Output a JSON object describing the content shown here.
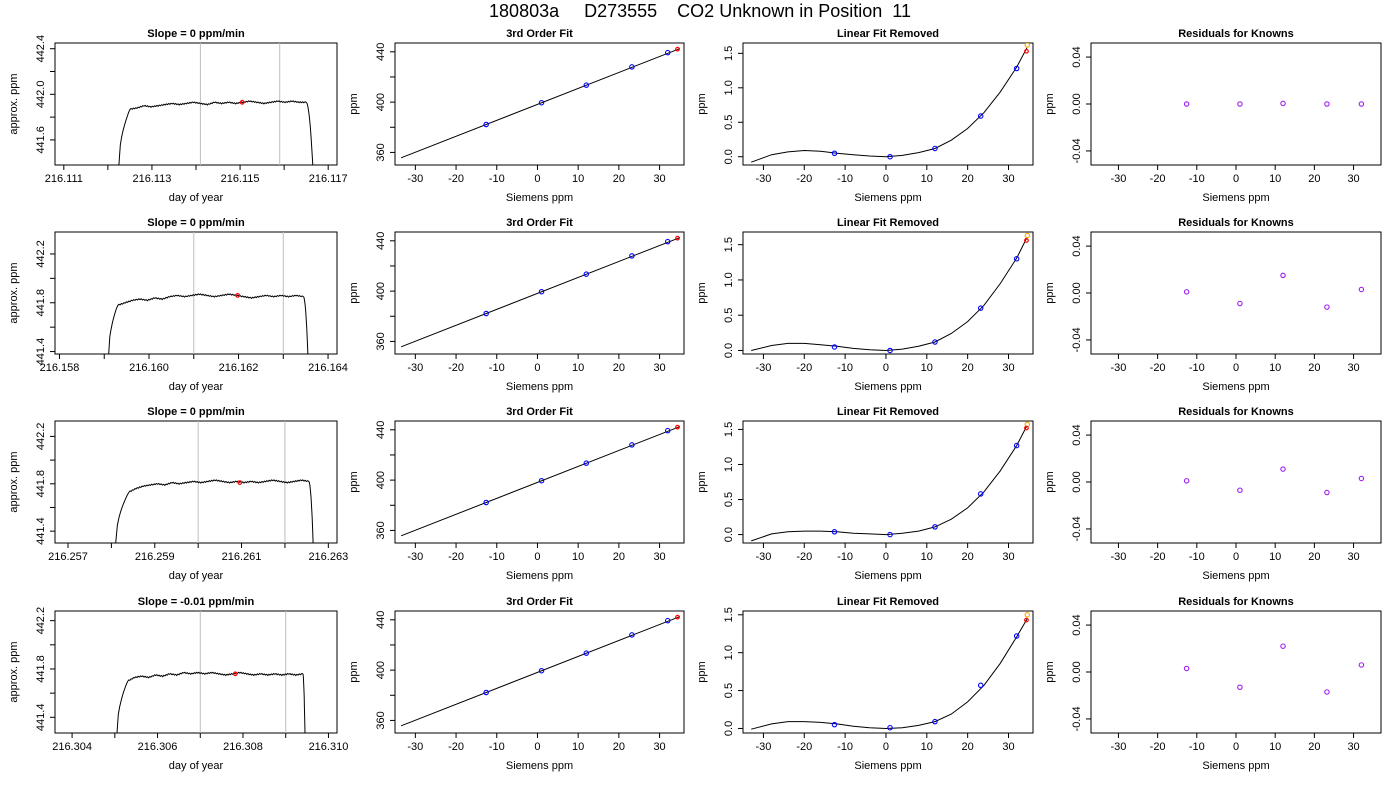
{
  "main_title": "180803a     D273555    CO2 Unknown in Position  11",
  "colors": {
    "trace": "#000000",
    "window_line": "#bebebe",
    "unknown_point": "#ff0000",
    "known_point": "#0000ff",
    "residual_point": "#a020f0",
    "extrapolated_point": "#ffa500",
    "axis": "#000000"
  },
  "chart_data": [
    {
      "type": "line",
      "row": 1,
      "col": 1,
      "title": "Slope =  0  ppm/min",
      "xlabel": "day of year",
      "ylabel": "approx. ppm",
      "xlim": [
        216.1108,
        216.1172
      ],
      "ylim": [
        441.38,
        442.45
      ],
      "xticks": [
        "216.111",
        "216.113",
        "216.115",
        "216.117"
      ],
      "xminorticks": [
        216.112,
        216.114,
        216.116
      ],
      "yticks": [
        "441.6",
        "442.0",
        "442.4"
      ],
      "yminorticks": [
        441.8,
        442.2
      ],
      "trace": {
        "t_start": 216.11225,
        "t_rise": 216.1125,
        "t_end": 216.1165,
        "t_drop": 216.11665,
        "start_value": 441.38,
        "plateau": [
          441.87,
          441.88,
          441.9,
          441.89,
          441.9,
          441.91,
          441.92,
          441.91,
          441.92,
          441.93,
          441.92,
          441.91,
          441.93,
          441.92,
          441.93,
          441.92,
          441.93,
          441.94,
          441.93,
          441.92,
          441.93,
          441.94,
          441.93,
          441.94,
          441.93,
          441.93
        ],
        "end_value": 441.38
      },
      "window": [
        216.1141,
        216.1159
      ],
      "mean_point": {
        "x": 216.11505,
        "y": 441.93
      }
    },
    {
      "type": "line",
      "row": 1,
      "col": 2,
      "title": "3rd Order Fit",
      "xlabel": "Siemens ppm",
      "ylabel": "ppm",
      "xlim": [
        -35,
        36
      ],
      "ylim": [
        350,
        447
      ],
      "xticks": [
        "-30",
        "-20",
        "-10",
        "0",
        "10",
        "20",
        "30"
      ],
      "yticks": [
        "360",
        "400",
        "440"
      ],
      "yminorticks": [
        380,
        420
      ],
      "fit_line": {
        "x": [
          -33.5,
          35
        ],
        "y": [
          355.7,
          442.6
        ]
      },
      "knowns": [
        {
          "x": -12.6,
          "y": 382.2
        },
        {
          "x": 1.0,
          "y": 399.5
        },
        {
          "x": 12.0,
          "y": 413.5
        },
        {
          "x": 23.2,
          "y": 428.0
        },
        {
          "x": 32.0,
          "y": 439.3
        }
      ],
      "unknown": {
        "x": 34.4,
        "y": 442.1
      }
    },
    {
      "type": "scatter",
      "row": 1,
      "col": 3,
      "title": "Linear Fit Removed",
      "xlabel": "Siemens ppm",
      "ylabel": "ppm",
      "xlim": [
        -35,
        36
      ],
      "ylim": [
        -0.12,
        1.65
      ],
      "xticks": [
        "-30",
        "-20",
        "-10",
        "0",
        "10",
        "20",
        "30"
      ],
      "yticks": [
        "0.0",
        "0.5",
        "1.0",
        "1.5"
      ],
      "curve": {
        "x": [
          -33,
          -28,
          -24,
          -20,
          -16,
          -12,
          -8,
          -4,
          0,
          4,
          8,
          12,
          16,
          20,
          24,
          28,
          32,
          34.5
        ],
        "y": [
          -0.08,
          0.03,
          0.07,
          0.09,
          0.08,
          0.05,
          0.03,
          0.01,
          0.0,
          0.02,
          0.06,
          0.12,
          0.24,
          0.41,
          0.64,
          0.94,
          1.3,
          1.58
        ]
      },
      "knowns": [
        {
          "x": -12.6,
          "y": 0.05
        },
        {
          "x": 1.0,
          "y": 0.0
        },
        {
          "x": 12.0,
          "y": 0.12
        },
        {
          "x": 23.2,
          "y": 0.59
        },
        {
          "x": 32.0,
          "y": 1.28
        }
      ],
      "unknown": {
        "x": 34.4,
        "y": 1.53
      },
      "extrapolated": {
        "x": 34.6,
        "y": 1.62
      }
    },
    {
      "type": "scatter",
      "row": 1,
      "col": 4,
      "title": "Residuals for Knowns",
      "xlabel": "Siemens ppm",
      "ylabel": "ppm",
      "xlim": [
        -37,
        37
      ],
      "ylim": [
        -0.052,
        0.052
      ],
      "xticks": [
        "-30",
        "-20",
        "-10",
        "0",
        "10",
        "20",
        "30"
      ],
      "yticks": [
        "-0.04",
        "0.00",
        "0.04"
      ],
      "points": [
        {
          "x": -12.6,
          "y": 0.0
        },
        {
          "x": 1.0,
          "y": 0.0
        },
        {
          "x": 12.0,
          "y": 0.0005
        },
        {
          "x": 23.2,
          "y": 0.0
        },
        {
          "x": 32.0,
          "y": 0.0
        }
      ]
    },
    {
      "type": "line",
      "row": 2,
      "col": 1,
      "title": "Slope =  0  ppm/min",
      "xlabel": "day of year",
      "ylabel": "approx. ppm",
      "xlim": [
        216.1579,
        216.1642
      ],
      "ylim": [
        441.38,
        442.38
      ],
      "xticks": [
        "216.158",
        "216.160",
        "216.162",
        "216.164"
      ],
      "xminorticks": [
        216.159,
        216.161,
        216.163
      ],
      "yticks": [
        "441.4",
        "441.8",
        "442.2"
      ],
      "yminorticks": [
        441.6,
        442.0
      ],
      "trace": {
        "t_start": 216.1591,
        "t_rise": 216.1593,
        "t_end": 216.16345,
        "t_drop": 216.16355,
        "start_value": 441.38,
        "plateau": [
          441.78,
          441.8,
          441.82,
          441.83,
          441.82,
          441.84,
          441.83,
          441.85,
          441.86,
          441.85,
          441.86,
          441.87,
          441.86,
          441.85,
          441.86,
          441.87,
          441.86,
          441.85,
          441.84,
          441.85,
          441.86,
          441.85,
          441.86,
          441.85,
          441.86,
          441.85
        ],
        "end_value": 441.38
      },
      "window": [
        216.161,
        216.163
      ],
      "mean_point": {
        "x": 216.16198,
        "y": 441.86
      }
    },
    {
      "type": "line",
      "row": 2,
      "col": 2,
      "title": "3rd Order Fit",
      "xlabel": "Siemens ppm",
      "ylabel": "ppm",
      "xlim": [
        -35,
        36
      ],
      "ylim": [
        350,
        447
      ],
      "xticks": [
        "-30",
        "-20",
        "-10",
        "0",
        "10",
        "20",
        "30"
      ],
      "yticks": [
        "360",
        "400",
        "440"
      ],
      "yminorticks": [
        380,
        420
      ],
      "fit_line": {
        "x": [
          -33.5,
          35
        ],
        "y": [
          355.7,
          442.6
        ]
      },
      "knowns": [
        {
          "x": -12.6,
          "y": 382.2
        },
        {
          "x": 1.0,
          "y": 399.5
        },
        {
          "x": 12.0,
          "y": 413.5
        },
        {
          "x": 23.2,
          "y": 428.0
        },
        {
          "x": 32.0,
          "y": 439.3
        }
      ],
      "unknown": {
        "x": 34.4,
        "y": 442.1
      }
    },
    {
      "type": "scatter",
      "row": 2,
      "col": 3,
      "title": "Linear Fit Removed",
      "xlabel": "Siemens ppm",
      "ylabel": "ppm",
      "xlim": [
        -35,
        36
      ],
      "ylim": [
        -0.05,
        1.68
      ],
      "xticks": [
        "-30",
        "-20",
        "-10",
        "0",
        "10",
        "20",
        "30"
      ],
      "yticks": [
        "0.0",
        "0.5",
        "1.0",
        "1.5"
      ],
      "curve": {
        "x": [
          -33,
          -28,
          -24,
          -20,
          -16,
          -12,
          -8,
          -4,
          0,
          4,
          8,
          12,
          16,
          20,
          24,
          28,
          32,
          34.5
        ],
        "y": [
          0.0,
          0.07,
          0.1,
          0.1,
          0.08,
          0.06,
          0.03,
          0.01,
          0.0,
          0.02,
          0.06,
          0.12,
          0.24,
          0.41,
          0.64,
          0.95,
          1.31,
          1.6
        ]
      },
      "knowns": [
        {
          "x": -12.6,
          "y": 0.05
        },
        {
          "x": 1.0,
          "y": 0.0
        },
        {
          "x": 12.0,
          "y": 0.12
        },
        {
          "x": 23.2,
          "y": 0.6
        },
        {
          "x": 32.0,
          "y": 1.3
        }
      ],
      "unknown": {
        "x": 34.4,
        "y": 1.56
      },
      "extrapolated": {
        "x": 34.6,
        "y": 1.63
      }
    },
    {
      "type": "scatter",
      "row": 2,
      "col": 4,
      "title": "Residuals for Knowns",
      "xlabel": "Siemens ppm",
      "ylabel": "ppm",
      "xlim": [
        -37,
        37
      ],
      "ylim": [
        -0.052,
        0.052
      ],
      "xticks": [
        "-30",
        "-20",
        "-10",
        "0",
        "10",
        "20",
        "30"
      ],
      "yticks": [
        "-0.04",
        "0.00",
        "0.04"
      ],
      "points": [
        {
          "x": -12.6,
          "y": 0.001
        },
        {
          "x": 1.0,
          "y": -0.009
        },
        {
          "x": 12.0,
          "y": 0.015
        },
        {
          "x": 23.2,
          "y": -0.012
        },
        {
          "x": 32.0,
          "y": 0.003
        }
      ]
    },
    {
      "type": "line",
      "row": 3,
      "col": 1,
      "title": "Slope =  0  ppm/min",
      "xlabel": "day of year",
      "ylabel": "approx. ppm",
      "xlim": [
        216.2567,
        216.2632
      ],
      "ylim": [
        441.3,
        442.33
      ],
      "xticks": [
        "216.257",
        "216.259",
        "216.261",
        "216.263"
      ],
      "xminorticks": [
        216.258,
        216.26,
        216.262
      ],
      "yticks": [
        "441.4",
        "441.8",
        "442.2"
      ],
      "yminorticks": [
        441.6,
        442.0
      ],
      "trace": {
        "t_start": 216.2581,
        "t_rise": 216.2584,
        "t_end": 216.26255,
        "t_drop": 216.26265,
        "start_value": 441.3,
        "plateau": [
          441.73,
          441.76,
          441.78,
          441.79,
          441.8,
          441.79,
          441.81,
          441.8,
          441.81,
          441.82,
          441.81,
          441.82,
          441.83,
          441.82,
          441.81,
          441.82,
          441.81,
          441.82,
          441.81,
          441.82,
          441.83,
          441.82,
          441.81,
          441.82,
          441.83,
          441.82
        ],
        "end_value": 441.3
      },
      "window": [
        216.26,
        216.262
      ],
      "mean_point": {
        "x": 216.26096,
        "y": 441.81
      }
    },
    {
      "type": "line",
      "row": 3,
      "col": 2,
      "title": "3rd Order Fit",
      "xlabel": "Siemens ppm",
      "ylabel": "ppm",
      "xlim": [
        -35,
        36
      ],
      "ylim": [
        350,
        447
      ],
      "xticks": [
        "-30",
        "-20",
        "-10",
        "0",
        "10",
        "20",
        "30"
      ],
      "yticks": [
        "360",
        "400",
        "440"
      ],
      "yminorticks": [
        380,
        420
      ],
      "fit_line": {
        "x": [
          -33.5,
          35
        ],
        "y": [
          355.7,
          442.6
        ]
      },
      "knowns": [
        {
          "x": -12.6,
          "y": 382.2
        },
        {
          "x": 1.0,
          "y": 399.5
        },
        {
          "x": 12.0,
          "y": 413.5
        },
        {
          "x": 23.2,
          "y": 428.0
        },
        {
          "x": 32.0,
          "y": 439.3
        }
      ],
      "unknown": {
        "x": 34.4,
        "y": 442.1
      }
    },
    {
      "type": "scatter",
      "row": 3,
      "col": 3,
      "title": "Linear Fit Removed",
      "xlabel": "Siemens ppm",
      "ylabel": "ppm",
      "xlim": [
        -35,
        36
      ],
      "ylim": [
        -0.12,
        1.62
      ],
      "xticks": [
        "-30",
        "-20",
        "-10",
        "0",
        "10",
        "20",
        "30"
      ],
      "yticks": [
        "0.0",
        "0.5",
        "1.0",
        "1.5"
      ],
      "curve": {
        "x": [
          -33,
          -28,
          -24,
          -20,
          -16,
          -12,
          -8,
          -4,
          0,
          4,
          8,
          12,
          16,
          20,
          24,
          28,
          32,
          34.5
        ],
        "y": [
          -0.09,
          0.01,
          0.04,
          0.05,
          0.05,
          0.04,
          0.02,
          0.01,
          0.0,
          0.02,
          0.05,
          0.11,
          0.22,
          0.38,
          0.61,
          0.91,
          1.27,
          1.55
        ]
      },
      "knowns": [
        {
          "x": -12.6,
          "y": 0.04
        },
        {
          "x": 1.0,
          "y": 0.0
        },
        {
          "x": 12.0,
          "y": 0.11
        },
        {
          "x": 23.2,
          "y": 0.58
        },
        {
          "x": 32.0,
          "y": 1.27
        }
      ],
      "unknown": {
        "x": 34.4,
        "y": 1.52
      },
      "extrapolated": {
        "x": 34.6,
        "y": 1.57
      }
    },
    {
      "type": "scatter",
      "row": 3,
      "col": 4,
      "title": "Residuals for Knowns",
      "xlabel": "Siemens ppm",
      "ylabel": "ppm",
      "xlim": [
        -37,
        37
      ],
      "ylim": [
        -0.052,
        0.052
      ],
      "xticks": [
        "-30",
        "-20",
        "-10",
        "0",
        "10",
        "20",
        "30"
      ],
      "yticks": [
        "-0.04",
        "0.00",
        "0.04"
      ],
      "points": [
        {
          "x": -12.6,
          "y": 0.001
        },
        {
          "x": 1.0,
          "y": -0.007
        },
        {
          "x": 12.0,
          "y": 0.011
        },
        {
          "x": 23.2,
          "y": -0.009
        },
        {
          "x": 32.0,
          "y": 0.003
        }
      ]
    },
    {
      "type": "line",
      "row": 4,
      "col": 1,
      "title": "Slope =  -0.01  ppm/min",
      "xlabel": "day of year",
      "ylabel": "approx. ppm",
      "xlim": [
        216.3036,
        216.3102
      ],
      "ylim": [
        441.27,
        442.28
      ],
      "xticks": [
        "216.304",
        "216.306",
        "216.308",
        "216.310"
      ],
      "xminorticks": [
        216.305,
        216.307,
        216.309
      ],
      "yticks": [
        "441.4",
        "441.8",
        "442.2"
      ],
      "yminorticks": [
        441.6,
        442.0
      ],
      "trace": {
        "t_start": 216.30505,
        "t_rise": 216.3053,
        "t_end": 216.3094,
        "t_drop": 216.30945,
        "start_value": 441.27,
        "plateau": [
          441.7,
          441.73,
          441.74,
          441.73,
          441.75,
          441.74,
          441.76,
          441.75,
          441.77,
          441.76,
          441.77,
          441.76,
          441.77,
          441.76,
          441.75,
          441.76,
          441.77,
          441.76,
          441.75,
          441.76,
          441.75,
          441.76,
          441.75,
          441.76,
          441.75,
          441.76
        ],
        "end_value": 441.27
      },
      "window": [
        216.307,
        216.309
      ],
      "mean_point": {
        "x": 216.30782,
        "y": 441.76
      }
    },
    {
      "type": "line",
      "row": 4,
      "col": 2,
      "title": "3rd Order Fit",
      "xlabel": "Siemens ppm",
      "ylabel": "ppm",
      "xlim": [
        -35,
        36
      ],
      "ylim": [
        350,
        447
      ],
      "xticks": [
        "-30",
        "-20",
        "-10",
        "0",
        "10",
        "20",
        "30"
      ],
      "yticks": [
        "360",
        "400",
        "440"
      ],
      "yminorticks": [
        380,
        420
      ],
      "fit_line": {
        "x": [
          -33.5,
          35
        ],
        "y": [
          355.7,
          442.6
        ]
      },
      "knowns": [
        {
          "x": -12.6,
          "y": 382.2
        },
        {
          "x": 1.0,
          "y": 399.5
        },
        {
          "x": 12.0,
          "y": 413.5
        },
        {
          "x": 23.2,
          "y": 428.0
        },
        {
          "x": 32.0,
          "y": 439.3
        }
      ],
      "unknown": {
        "x": 34.4,
        "y": 442.1
      }
    },
    {
      "type": "scatter",
      "row": 4,
      "col": 3,
      "title": "Linear Fit Removed",
      "xlabel": "Siemens ppm",
      "ylabel": "ppm",
      "xlim": [
        -35,
        36
      ],
      "ylim": [
        -0.06,
        1.55
      ],
      "xticks": [
        "-30",
        "-20",
        "-10",
        "0",
        "10",
        "20",
        "30"
      ],
      "yticks": [
        "0.0",
        "0.5",
        "1.0",
        "1.5"
      ],
      "curve": {
        "x": [
          -33,
          -28,
          -24,
          -20,
          -16,
          -12,
          -8,
          -4,
          0,
          4,
          8,
          12,
          16,
          20,
          24,
          28,
          32,
          34.5
        ],
        "y": [
          -0.01,
          0.06,
          0.09,
          0.09,
          0.08,
          0.06,
          0.03,
          0.01,
          0.0,
          0.01,
          0.04,
          0.09,
          0.19,
          0.35,
          0.57,
          0.86,
          1.21,
          1.44
        ]
      },
      "knowns": [
        {
          "x": -12.6,
          "y": 0.05
        },
        {
          "x": 1.0,
          "y": 0.01
        },
        {
          "x": 12.0,
          "y": 0.09
        },
        {
          "x": 23.2,
          "y": 0.57
        },
        {
          "x": 32.0,
          "y": 1.22
        }
      ],
      "unknown": {
        "x": 34.4,
        "y": 1.43
      },
      "extrapolated": {
        "x": 34.6,
        "y": 1.5
      }
    },
    {
      "type": "scatter",
      "row": 4,
      "col": 4,
      "title": "Residuals for Knowns",
      "xlabel": "Siemens ppm",
      "ylabel": "ppm",
      "xlim": [
        -37,
        37
      ],
      "ylim": [
        -0.052,
        0.052
      ],
      "xticks": [
        "-30",
        "-20",
        "-10",
        "0",
        "10",
        "20",
        "30"
      ],
      "yticks": [
        "-0.04",
        "0.00",
        "0.04"
      ],
      "points": [
        {
          "x": -12.6,
          "y": 0.003
        },
        {
          "x": 1.0,
          "y": -0.013
        },
        {
          "x": 12.0,
          "y": 0.022
        },
        {
          "x": 23.2,
          "y": -0.017
        },
        {
          "x": 32.0,
          "y": 0.006
        }
      ]
    }
  ]
}
